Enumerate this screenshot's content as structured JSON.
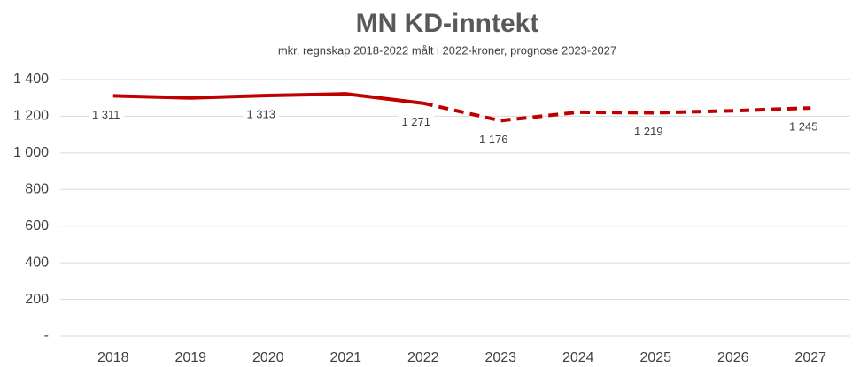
{
  "chart_data": {
    "type": "line",
    "title": "MN KD-inntekt",
    "subtitle": "mkr, regnskap 2018-2022 målt i 2022-kroner, prognose 2023-2027",
    "categories": [
      "2018",
      "2019",
      "2020",
      "2021",
      "2022",
      "2023",
      "2024",
      "2025",
      "2026",
      "2027"
    ],
    "series": [
      {
        "color": "#c00000",
        "line_style": "solid",
        "values": [
          1311,
          1300,
          1313,
          1322,
          1271,
          null,
          null,
          null,
          null,
          null
        ],
        "value_labels": [
          "1 311",
          null,
          "1 313",
          null,
          "1 271",
          null,
          null,
          null,
          null,
          null
        ]
      },
      {
        "color": "#c00000",
        "line_style": "dashed",
        "values": [
          null,
          null,
          null,
          null,
          1271,
          1176,
          1222,
          1219,
          1230,
          1245
        ],
        "value_labels": [
          null,
          null,
          null,
          null,
          null,
          "1 176",
          null,
          "1 219",
          null,
          "1 245"
        ]
      }
    ],
    "ylim": [
      0,
      1400
    ],
    "yticks": [
      {
        "value": 0,
        "label": "-"
      },
      200,
      400,
      600,
      800,
      {
        "value": 1000,
        "label": "1 000"
      },
      {
        "value": 1200,
        "label": "1 200"
      },
      {
        "value": 1400,
        "label": "1 400"
      }
    ],
    "grid": true
  }
}
